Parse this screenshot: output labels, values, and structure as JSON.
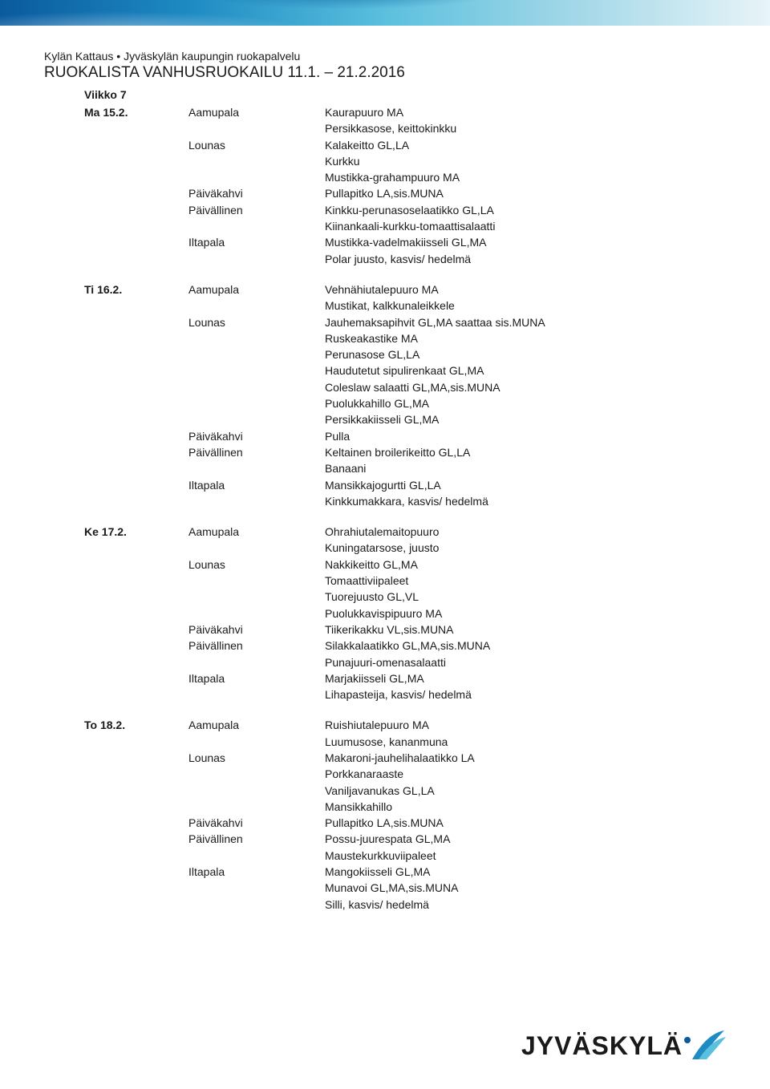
{
  "header": {
    "org": "Kylän Kattaus • Jyväskylän kaupungin ruokapalvelu",
    "title": "RUOKALISTA VANHUSRUOKAILU 11.1. – 21.2.2016",
    "week": "Viikko 7"
  },
  "colors": {
    "banner_from": "#0a5a9e",
    "banner_mid": "#5bc0de",
    "banner_to": "#e8f4f8",
    "logo_dot": "#0a5a9e",
    "logo_swoosh1": "#1e8bc3",
    "logo_swoosh2": "#5bc0de",
    "text": "#1a1a1a"
  },
  "logo": {
    "text": "JYVÄSKYLÄ"
  },
  "days": [
    {
      "date": "Ma 15.2.",
      "meals": [
        {
          "label": "Aamupala",
          "items": [
            "Kaurapuuro MA",
            "Persikkasose, keittokinkku"
          ]
        },
        {
          "label": "Lounas",
          "items": [
            "Kalakeitto GL,LA",
            "Kurkku",
            "Mustikka-grahampuuro MA"
          ]
        },
        {
          "label": "Päiväkahvi",
          "items": [
            "Pullapitko LA,sis.MUNA"
          ]
        },
        {
          "label": "Päivällinen",
          "items": [
            "Kinkku-perunasoselaatikko GL,LA",
            "Kiinankaali-kurkku-tomaattisalaatti"
          ]
        },
        {
          "label": "Iltapala",
          "items": [
            "Mustikka-vadelmakiisseli GL,MA",
            "Polar juusto, kasvis/ hedelmä"
          ]
        }
      ]
    },
    {
      "date": "Ti 16.2.",
      "meals": [
        {
          "label": "Aamupala",
          "items": [
            "Vehnähiutalepuuro MA",
            "Mustikat, kalkkunaleikkele"
          ]
        },
        {
          "label": "Lounas",
          "items": [
            "Jauhemaksapihvit GL,MA saattaa sis.MUNA",
            "Ruskeakastike MA",
            "Perunasose GL,LA",
            "Haudutetut sipulirenkaat GL,MA",
            "Coleslaw salaatti GL,MA,sis.MUNA",
            "Puolukkahillo GL,MA",
            "Persikkakiisseli GL,MA"
          ]
        },
        {
          "label": "Päiväkahvi",
          "items": [
            "Pulla"
          ]
        },
        {
          "label": "Päivällinen",
          "items": [
            "Keltainen broilerikeitto GL,LA",
            "Banaani"
          ]
        },
        {
          "label": "Iltapala",
          "items": [
            "Mansikkajogurtti GL,LA",
            "Kinkkumakkara, kasvis/ hedelmä"
          ]
        }
      ]
    },
    {
      "date": "Ke 17.2.",
      "meals": [
        {
          "label": "Aamupala",
          "items": [
            "Ohrahiutalemaitopuuro",
            "Kuningatarsose, juusto"
          ]
        },
        {
          "label": "Lounas",
          "items": [
            "Nakkikeitto GL,MA",
            "Tomaattiviipaleet",
            "Tuorejuusto GL,VL",
            "Puolukkavispipuuro MA"
          ]
        },
        {
          "label": "Päiväkahvi",
          "items": [
            "Tiikerikakku VL,sis.MUNA"
          ]
        },
        {
          "label": "Päivällinen",
          "items": [
            "Silakkalaatikko GL,MA,sis.MUNA",
            "Punajuuri-omenasalaatti"
          ]
        },
        {
          "label": "Iltapala",
          "items": [
            "Marjakiisseli GL,MA",
            "Lihapasteija, kasvis/ hedelmä"
          ]
        }
      ]
    },
    {
      "date": "To 18.2.",
      "meals": [
        {
          "label": "Aamupala",
          "items": [
            "Ruishiutalepuuro MA",
            "Luumusose, kananmuna"
          ]
        },
        {
          "label": "Lounas",
          "items": [
            "Makaroni-jauhelihalaatikko LA",
            "Porkkanaraaste",
            "Vaniljavanukas GL,LA",
            "Mansikkahillo"
          ]
        },
        {
          "label": "Päiväkahvi",
          "items": [
            "Pullapitko LA,sis.MUNA"
          ]
        },
        {
          "label": "Päivällinen",
          "items": [
            "Possu-juurespata GL,MA",
            "Maustekurkkuviipaleet"
          ]
        },
        {
          "label": "Iltapala",
          "items": [
            "Mangokiisseli GL,MA",
            "Munavoi GL,MA,sis.MUNA",
            "Silli, kasvis/ hedelmä"
          ]
        }
      ]
    }
  ]
}
